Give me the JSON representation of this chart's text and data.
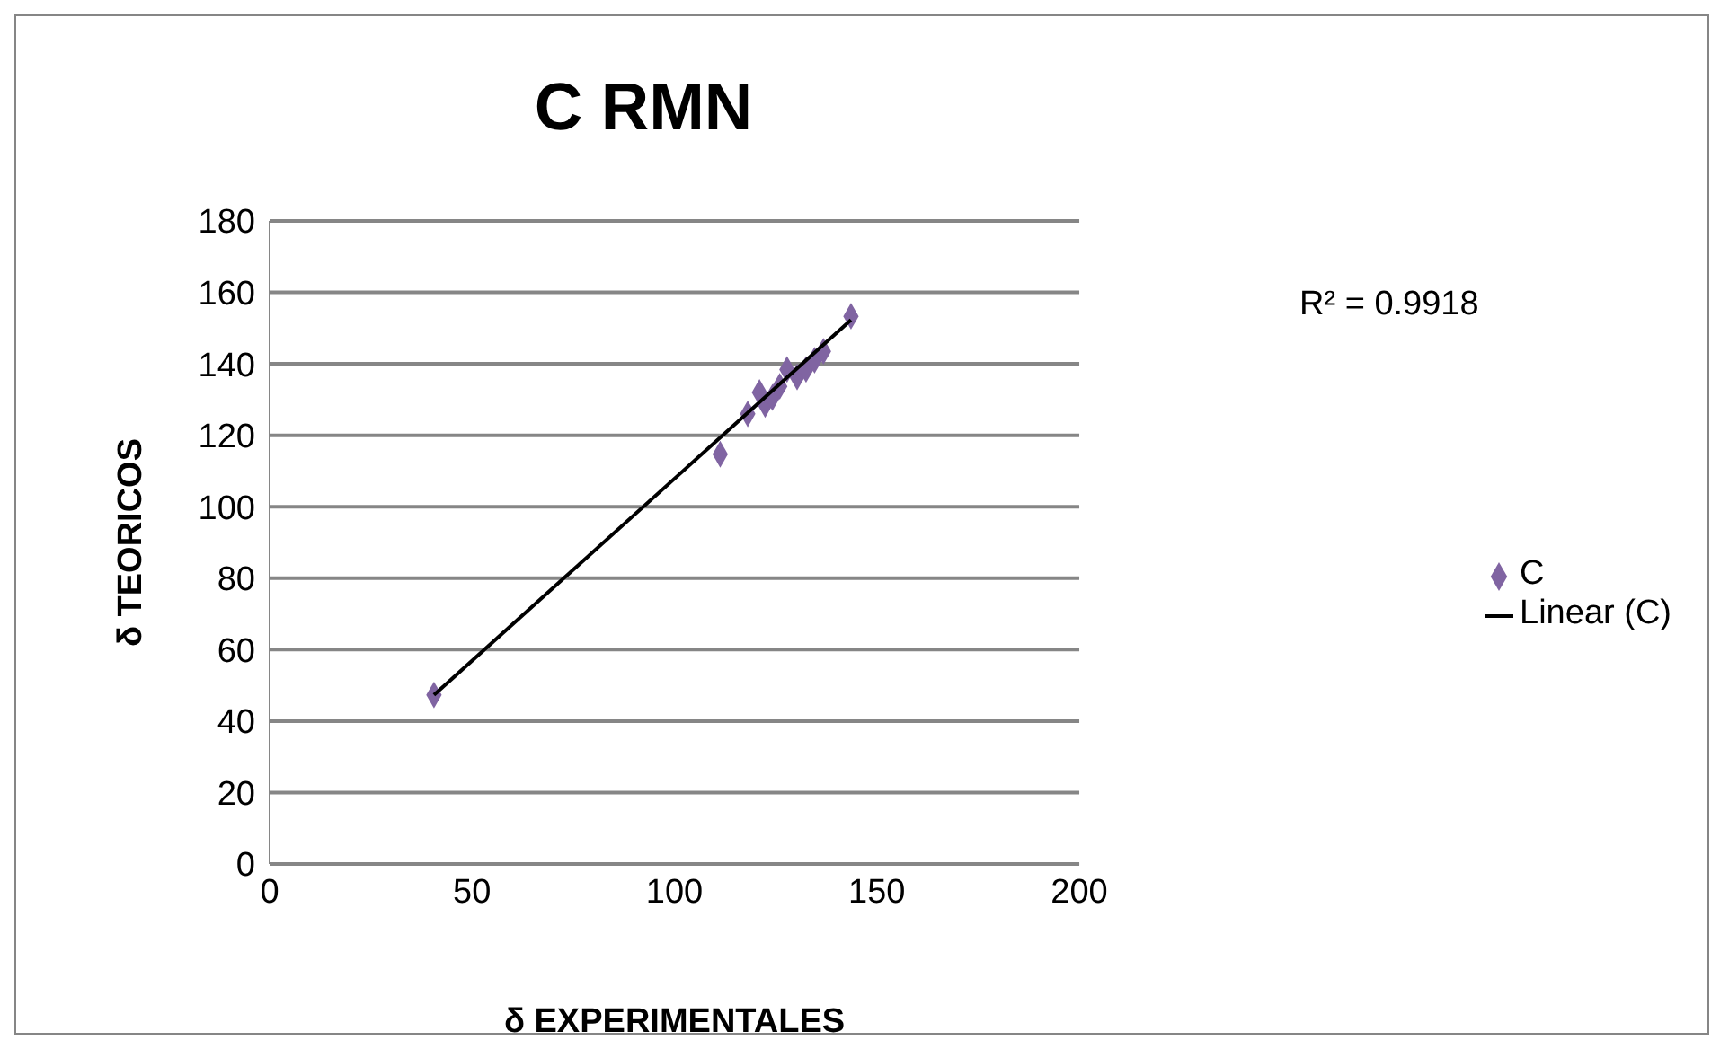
{
  "chart_data": {
    "type": "scatter",
    "title": "C RMN",
    "xlabel": "δ EXPERIMENTALES",
    "ylabel": "δ TEORICOS",
    "xlim": [
      0,
      200
    ],
    "xticks": [
      0,
      50,
      100,
      150,
      200
    ],
    "ylim": [
      0,
      180
    ],
    "yticks": [
      0,
      20,
      40,
      60,
      80,
      100,
      120,
      140,
      160,
      180
    ],
    "grid": "y",
    "legend": "right",
    "marker": "diamond",
    "annotations": [
      "R² = 0.9918"
    ],
    "series": [
      {
        "name": "C",
        "color": "#8064a2",
        "x": [
          40.6,
          111.3,
          118.1,
          121,
          122.4,
          124.2,
          126,
          127.8,
          130.3,
          132.5,
          134.6,
          136.8,
          143.6
        ],
        "values": [
          47.3,
          114.7,
          126,
          132,
          128.6,
          130.6,
          133.7,
          138.4,
          136.3,
          138.4,
          141,
          143.5,
          153.3
        ]
      },
      {
        "name": "Linear (C)",
        "type": "line",
        "color": "#000000",
        "marker": "none",
        "x": [
          40.6,
          143.6
        ],
        "values": [
          47.3,
          152.3
        ]
      }
    ]
  }
}
